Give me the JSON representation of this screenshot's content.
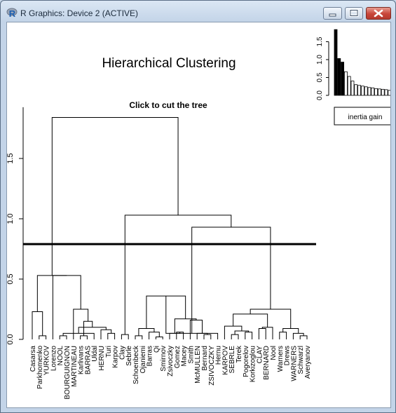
{
  "window": {
    "title": "R Graphics: Device 2 (ACTIVE)",
    "app_icon_letter": "R"
  },
  "plot": {
    "main_title": "Hierarchical Clustering",
    "subtitle": "Click to cut the tree",
    "legend_label": "inertia gain"
  },
  "chart_data": [
    {
      "type": "dendrogram",
      "y_ticks": [
        "0.0",
        "0.5",
        "1.0",
        "1.5"
      ],
      "ylim": [
        0,
        1.95
      ],
      "cut_height": 0.79,
      "leaves": [
        "Casarsa",
        "Parkhomenko",
        "YURKOV",
        "Lorenzo",
        "NOOL",
        "BOURGUIGNON",
        "MARTINEAU",
        "Karlivans",
        "BARRAS",
        "Uldal",
        "HERNU",
        "Turi",
        "Karpov",
        "Clay",
        "Sebrle",
        "Schoenbeck",
        "Ojaniemi",
        "Barras",
        "Qi",
        "Smirnov",
        "Zsivoczky",
        "Gomez",
        "Macey",
        "Smith",
        "McMULLEN",
        "Bernard",
        "ZSIVOCZKY",
        "Hernu",
        "KARPOV",
        "SEBRLE",
        "Terek",
        "Pogorelov",
        "Korkizoglou",
        "CLAY",
        "BERNARD",
        "Nool",
        "Warners",
        "Drews",
        "WARNERS",
        "Schwarzl",
        "Averyanov"
      ],
      "merges": [
        [
          -5,
          -6,
          0.03
        ],
        [
          -8,
          -9,
          0.03
        ],
        [
          -40,
          -41,
          0.03
        ],
        [
          -19,
          -20,
          0.02
        ],
        [
          -2,
          -3,
          0.03
        ],
        [
          -14,
          -15,
          0.04
        ],
        [
          -30,
          -31,
          0.04
        ],
        [
          -39,
          3,
          0.05
        ],
        [
          -26,
          -27,
          0.04
        ],
        [
          -37,
          -38,
          0.06
        ],
        [
          -12,
          -13,
          0.05
        ],
        [
          -16,
          -17,
          0.03
        ],
        [
          -25,
          9,
          0.05
        ],
        [
          -18,
          4,
          0.06
        ],
        [
          -34,
          -35,
          0.09
        ],
        [
          -36,
          15,
          0.1
        ],
        [
          -32,
          -33,
          0.06
        ],
        [
          7,
          17,
          0.07
        ],
        [
          -11,
          11,
          0.08
        ],
        [
          -10,
          1,
          0.05
        ],
        [
          -22,
          -23,
          0.06
        ],
        [
          10,
          8,
          0.09
        ],
        [
          19,
          20,
          0.1
        ],
        [
          -29,
          18,
          0.11
        ],
        [
          2,
          23,
          0.15
        ],
        [
          -24,
          13,
          0.16
        ],
        [
          12,
          14,
          0.09
        ],
        [
          -7,
          25,
          0.25
        ],
        [
          -1,
          5,
          0.23
        ],
        [
          -21,
          21,
          0.05
        ],
        [
          30,
          26,
          0.17
        ],
        [
          27,
          31,
          0.36
        ],
        [
          24,
          16,
          0.21
        ],
        [
          33,
          22,
          0.25
        ],
        [
          -28,
          32,
          0.05
        ],
        [
          -4,
          28,
          0.53
        ],
        [
          29,
          36,
          0.53
        ],
        [
          35,
          34,
          0.93
        ],
        [
          6,
          38,
          1.03
        ],
        [
          37,
          39,
          1.84
        ]
      ]
    },
    {
      "type": "bar",
      "values": [
        1.84,
        1.03,
        0.93,
        0.66,
        0.53,
        0.4,
        0.3,
        0.28,
        0.26,
        0.24,
        0.22,
        0.21,
        0.19,
        0.18,
        0.17,
        0.16,
        0.14
      ],
      "highlight_count": 3,
      "y_ticks": [
        "0.0",
        "0.5",
        "1.0",
        "1.5"
      ],
      "ylim": [
        0,
        1.85
      ]
    }
  ]
}
